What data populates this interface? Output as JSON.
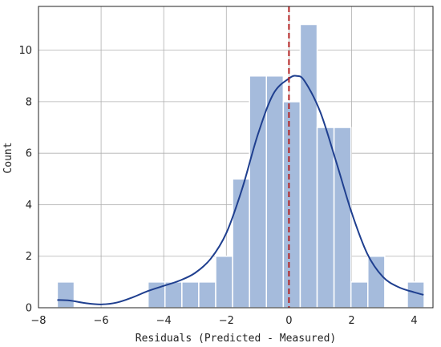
{
  "chart_data": {
    "type": "bar",
    "xlabel": "Residuals (Predicted - Measured)",
    "ylabel": "Count",
    "xlim": [
      -8,
      4.6
    ],
    "ylim": [
      0,
      11.7
    ],
    "xticks": [
      -8,
      -6,
      -4,
      -2,
      0,
      2,
      4
    ],
    "yticks": [
      0,
      2,
      4,
      6,
      8,
      10
    ],
    "grid": true,
    "bins": [
      {
        "left": -7.4,
        "right": -6.86,
        "count": 1
      },
      {
        "left": -4.5,
        "right": -3.96,
        "count": 1
      },
      {
        "left": -3.96,
        "right": -3.42,
        "count": 1
      },
      {
        "left": -3.42,
        "right": -2.88,
        "count": 1
      },
      {
        "left": -2.88,
        "right": -2.34,
        "count": 1
      },
      {
        "left": -2.34,
        "right": -1.8,
        "count": 2
      },
      {
        "left": -1.8,
        "right": -1.26,
        "count": 5
      },
      {
        "left": -1.26,
        "right": -0.72,
        "count": 9
      },
      {
        "left": -0.72,
        "right": -0.18,
        "count": 9
      },
      {
        "left": -0.18,
        "right": 0.36,
        "count": 8
      },
      {
        "left": 0.36,
        "right": 0.9,
        "count": 11
      },
      {
        "left": 0.9,
        "right": 1.44,
        "count": 7
      },
      {
        "left": 1.44,
        "right": 1.98,
        "count": 7
      },
      {
        "left": 1.98,
        "right": 2.52,
        "count": 1
      },
      {
        "left": 2.52,
        "right": 3.06,
        "count": 2
      },
      {
        "left": 3.78,
        "right": 4.32,
        "count": 1
      }
    ],
    "kde": {
      "x": [
        -7.4,
        -7.0,
        -6.5,
        -6.0,
        -5.5,
        -5.0,
        -4.5,
        -4.0,
        -3.5,
        -3.0,
        -2.5,
        -2.0,
        -1.5,
        -1.0,
        -0.5,
        0.0,
        0.25,
        0.5,
        1.0,
        1.5,
        2.0,
        2.5,
        3.0,
        3.5,
        4.0,
        4.3
      ],
      "y": [
        0.3,
        0.28,
        0.18,
        0.13,
        0.2,
        0.4,
        0.65,
        0.85,
        1.05,
        1.35,
        1.9,
        2.9,
        4.6,
        6.7,
        8.3,
        8.9,
        9.0,
        8.8,
        7.6,
        5.7,
        3.7,
        2.1,
        1.2,
        0.8,
        0.6,
        0.5
      ]
    },
    "reference_line": {
      "x": 0
    },
    "colors": {
      "bar_fill": "#a5bbdc",
      "bar_edge": "#ffffff",
      "kde_line": "#1f3f8f",
      "reference_line": "#b22222",
      "grid": "#b0b0b0",
      "axes": "#222222"
    }
  }
}
